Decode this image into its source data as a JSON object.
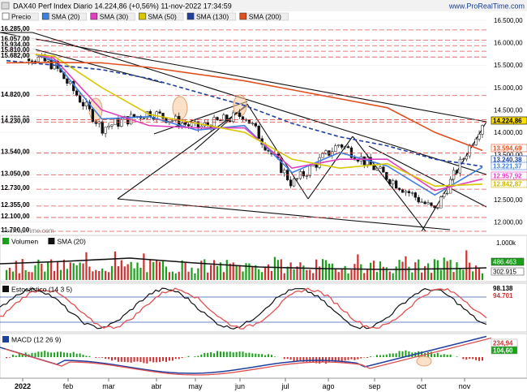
{
  "header": {
    "title": "DAX40 Perf Index Diario 14.224,86 (+0,56%) 11-nov-2022 17:34:59",
    "brand": "www.ProRealTime.com"
  },
  "panels": {
    "price": {
      "legend": [
        {
          "label": "Precio",
          "color": "#ffffff"
        },
        {
          "label": "SMA (20)",
          "color": "#3f7fe0"
        },
        {
          "label": "SMA (30)",
          "color": "#e040c0"
        },
        {
          "label": "SMA (50)",
          "color": "#d8c800"
        },
        {
          "label": "SMA (130)",
          "color": "#2040a0"
        },
        {
          "label": "SMA (200)",
          "color": "#e05020"
        }
      ],
      "watermark": "ProRealTime.com",
      "y_ticks": [
        "16.500,00",
        "16.000,00",
        "15.500,00",
        "15.000,00",
        "14.500,00",
        "14.000,00",
        "13.500,00",
        "13.000,00",
        "12.500,00",
        "12.000,00"
      ],
      "left_levels": [
        "16.285,00",
        "16.057,00",
        "15.934,00",
        "15.810,00",
        "15.682,00",
        "14.820,00",
        "14.280,00",
        "14.230,00",
        "13.540,00",
        "13.050,00",
        "12.730,00",
        "12.355,00",
        "12.100,00",
        "11.790,00"
      ],
      "right_labels": [
        {
          "text": "14.224,86",
          "color": "#ffe000",
          "fg": "#000000"
        },
        {
          "text": "13.594,69",
          "color": "#ffffff",
          "fg": "#e05020"
        },
        {
          "text": "13.240,38",
          "color": "#ffffff",
          "fg": "#2040a0"
        },
        {
          "text": "13.221,37",
          "color": "#ffffff",
          "fg": "#3f7fe0"
        },
        {
          "text": "12.957,92",
          "color": "#ffffff",
          "fg": "#e040c0"
        },
        {
          "text": "12.842,87",
          "color": "#ffffff",
          "fg": "#c8b800"
        }
      ]
    },
    "volume": {
      "legend": [
        {
          "label": "Volumen"
        },
        {
          "label": "SMA (20)"
        }
      ],
      "y_tick": "1.000k",
      "right_labels": [
        "486.463",
        "302.915"
      ]
    },
    "stochastic": {
      "legend": [
        {
          "label": "Estocástico (14 3 5)"
        }
      ],
      "right_labels": [
        "98.138",
        "94.701"
      ]
    },
    "macd": {
      "legend": [
        {
          "label": "MACD (12 26 9)"
        }
      ],
      "right_labels": [
        "234,94",
        "104,60"
      ]
    }
  },
  "x_axis": [
    "2022",
    "feb",
    "mar",
    "abr",
    "may",
    "jun",
    "jul",
    "ago",
    "sep",
    "oct",
    "nov"
  ],
  "chart_data": {
    "type": "line",
    "title": "DAX40 Perf Index Diario",
    "x": [
      "2022",
      "feb",
      "mar",
      "abr",
      "may",
      "jun",
      "jul",
      "ago",
      "sep",
      "oct",
      "nov"
    ],
    "ylim": [
      11700,
      16700
    ],
    "series": [
      {
        "name": "Precio",
        "values": [
          15900,
          15500,
          14100,
          14450,
          14100,
          14400,
          12850,
          13750,
          13000,
          12250,
          14220
        ]
      },
      {
        "name": "SMA (20)",
        "values": [
          15950,
          15600,
          14300,
          14350,
          14050,
          14150,
          13100,
          13550,
          13250,
          12600,
          13221
        ]
      },
      {
        "name": "SMA (30)",
        "values": [
          15900,
          15650,
          14500,
          14150,
          14100,
          14100,
          13200,
          13400,
          13400,
          12700,
          12958
        ]
      },
      {
        "name": "SMA (50)",
        "values": [
          15800,
          15700,
          15000,
          14400,
          14200,
          14000,
          13400,
          13200,
          13300,
          12800,
          12843
        ]
      },
      {
        "name": "SMA (130)",
        "values": [
          15600,
          15500,
          15400,
          15200,
          14900,
          14600,
          14200,
          13900,
          13700,
          13400,
          13240
        ]
      },
      {
        "name": "SMA (200)",
        "values": [
          15550,
          15560,
          15550,
          15450,
          15300,
          15150,
          14950,
          14750,
          14550,
          14000,
          13595
        ]
      }
    ]
  }
}
